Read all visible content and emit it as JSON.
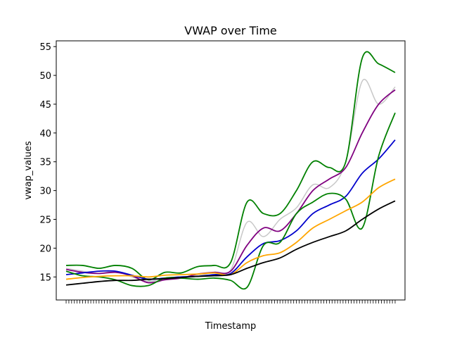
{
  "chart_data": {
    "type": "line",
    "title": "VWAP over Time",
    "xlabel": "Timestamp",
    "ylabel": "vwap_values",
    "ylim": [
      11,
      56
    ],
    "xlim": [
      -3,
      103
    ],
    "yticks": [
      15,
      20,
      25,
      30,
      35,
      40,
      45,
      50,
      55
    ],
    "x": [
      0,
      5,
      10,
      15,
      20,
      25,
      30,
      35,
      40,
      45,
      50,
      55,
      60,
      65,
      70,
      75,
      80,
      85,
      90,
      95,
      100
    ],
    "grid": false,
    "legend": "none",
    "series": [
      {
        "color": "#c8c8c8",
        "values": [
          16.5,
          16.0,
          15.6,
          16.0,
          15.0,
          14.2,
          14.8,
          15.0,
          15.2,
          15.8,
          16.2,
          24.5,
          22.0,
          25.0,
          27.0,
          31.0,
          30.5,
          35.0,
          49.0,
          45.0,
          48.0
        ]
      },
      {
        "color": "#008000",
        "values": [
          17.0,
          17.0,
          16.5,
          17.0,
          16.5,
          14.5,
          15.8,
          15.7,
          16.8,
          17.0,
          17.5,
          28.0,
          26.0,
          26.0,
          30.0,
          35.0,
          34.0,
          35.0,
          53.0,
          52.0,
          50.5
        ]
      },
      {
        "color": "#800080",
        "values": [
          16.3,
          15.8,
          15.6,
          15.8,
          15.2,
          14.0,
          14.5,
          14.8,
          15.5,
          15.8,
          16.0,
          20.5,
          23.5,
          23.0,
          26.0,
          30.0,
          32.0,
          34.0,
          40.0,
          45.0,
          47.5
        ]
      },
      {
        "color": "#0000cc",
        "values": [
          15.4,
          15.7,
          16.0,
          16.0,
          15.3,
          14.6,
          14.8,
          15.0,
          15.1,
          15.4,
          15.6,
          18.5,
          20.8,
          21.3,
          23.0,
          26.0,
          27.5,
          29.0,
          33.0,
          35.5,
          38.8
        ]
      },
      {
        "color": "#008000",
        "values": [
          16.0,
          15.2,
          15.0,
          14.5,
          13.5,
          13.5,
          14.8,
          14.8,
          14.6,
          14.8,
          14.4,
          13.2,
          20.5,
          21.0,
          26.0,
          28.0,
          29.5,
          28.5,
          23.5,
          36.0,
          43.5
        ]
      },
      {
        "color": "#ffa500",
        "values": [
          14.6,
          14.9,
          15.1,
          15.2,
          15.2,
          15.0,
          15.3,
          15.4,
          15.5,
          15.7,
          15.4,
          17.5,
          18.7,
          19.2,
          21.0,
          23.5,
          25.0,
          26.5,
          28.0,
          30.5,
          32.0
        ]
      },
      {
        "color": "#000000",
        "values": [
          13.6,
          13.9,
          14.2,
          14.4,
          14.4,
          14.6,
          14.7,
          14.9,
          15.1,
          15.2,
          15.4,
          16.5,
          17.5,
          18.3,
          19.8,
          21.0,
          22.0,
          23.0,
          25.0,
          26.8,
          28.2
        ]
      }
    ]
  }
}
